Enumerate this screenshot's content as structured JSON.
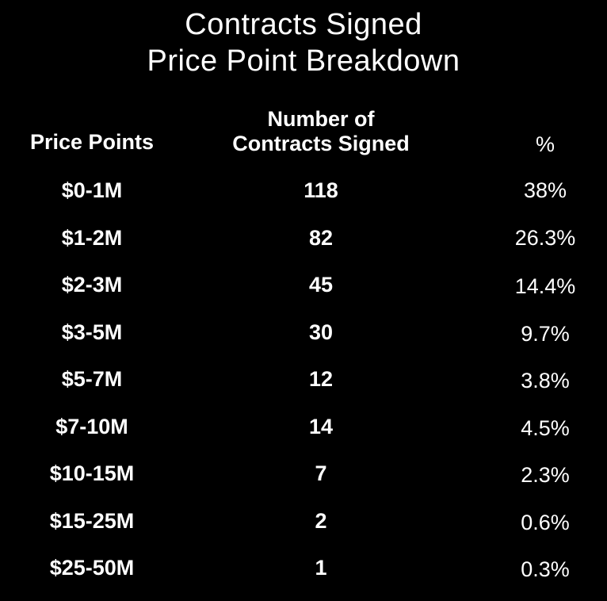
{
  "chart_data": {
    "type": "table",
    "title": "Contracts Signed",
    "subtitle": "Price Point Breakdown",
    "columns": {
      "price": "Price Points",
      "count_line1": "Number of",
      "count_line2": "Contracts Signed",
      "pct": "%"
    },
    "rows": [
      {
        "price": "$0-1M",
        "count": "118",
        "pct": "38%"
      },
      {
        "price": "$1-2M",
        "count": "82",
        "pct": "26.3%"
      },
      {
        "price": "$2-3M",
        "count": "45",
        "pct": "14.4%"
      },
      {
        "price": "$3-5M",
        "count": "30",
        "pct": "9.7%"
      },
      {
        "price": "$5-7M",
        "count": "12",
        "pct": "3.8%"
      },
      {
        "price": "$7-10M",
        "count": "14",
        "pct": "4.5%"
      },
      {
        "price": "$10-15M",
        "count": "7",
        "pct": "2.3%"
      },
      {
        "price": "$15-25M",
        "count": "2",
        "pct": "0.6%"
      },
      {
        "price": "$25-50M",
        "count": "1",
        "pct": "0.3%"
      }
    ],
    "colors": {
      "background": "#000000",
      "text": "#ffffff"
    }
  }
}
